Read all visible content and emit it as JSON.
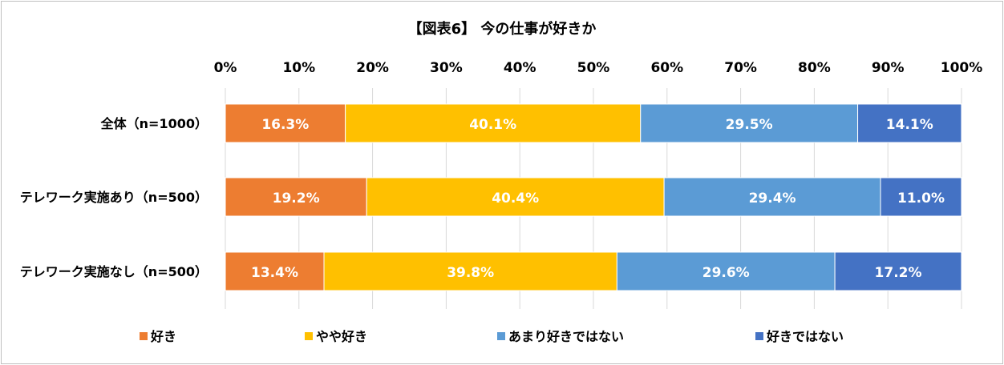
{
  "chart_data": {
    "type": "bar",
    "orientation": "horizontal",
    "stacked": true,
    "title": "【図表6】 今の仕事が好きか",
    "xlabel": "",
    "ylabel": "",
    "xlim": [
      0,
      100
    ],
    "x_ticks": [
      "0%",
      "10%",
      "20%",
      "30%",
      "40%",
      "50%",
      "60%",
      "70%",
      "80%",
      "90%",
      "100%"
    ],
    "x_axis_position": "top",
    "grid": true,
    "legend_position": "bottom",
    "categories": [
      "全体（n=1000）",
      "テレワーク実施あり（n=500）",
      "テレワーク実施なし（n=500）"
    ],
    "series": [
      {
        "name": "好き",
        "color": "#ed7d31",
        "values": [
          16.3,
          19.2,
          13.4
        ],
        "labels": [
          "16.3%",
          "19.2%",
          "13.4%"
        ]
      },
      {
        "name": "やや好き",
        "color": "#ffc000",
        "values": [
          40.1,
          40.4,
          39.8
        ],
        "labels": [
          "40.1%",
          "40.4%",
          "39.8%"
        ]
      },
      {
        "name": "あまり好きではない",
        "color": "#5b9bd5",
        "values": [
          29.5,
          29.4,
          29.6
        ],
        "labels": [
          "29.5%",
          "29.4%",
          "29.6%"
        ]
      },
      {
        "name": "好きではない",
        "color": "#4472c4",
        "values": [
          14.1,
          11.0,
          17.2
        ],
        "labels": [
          "14.1%",
          "11.0%",
          "17.2%"
        ]
      }
    ]
  }
}
